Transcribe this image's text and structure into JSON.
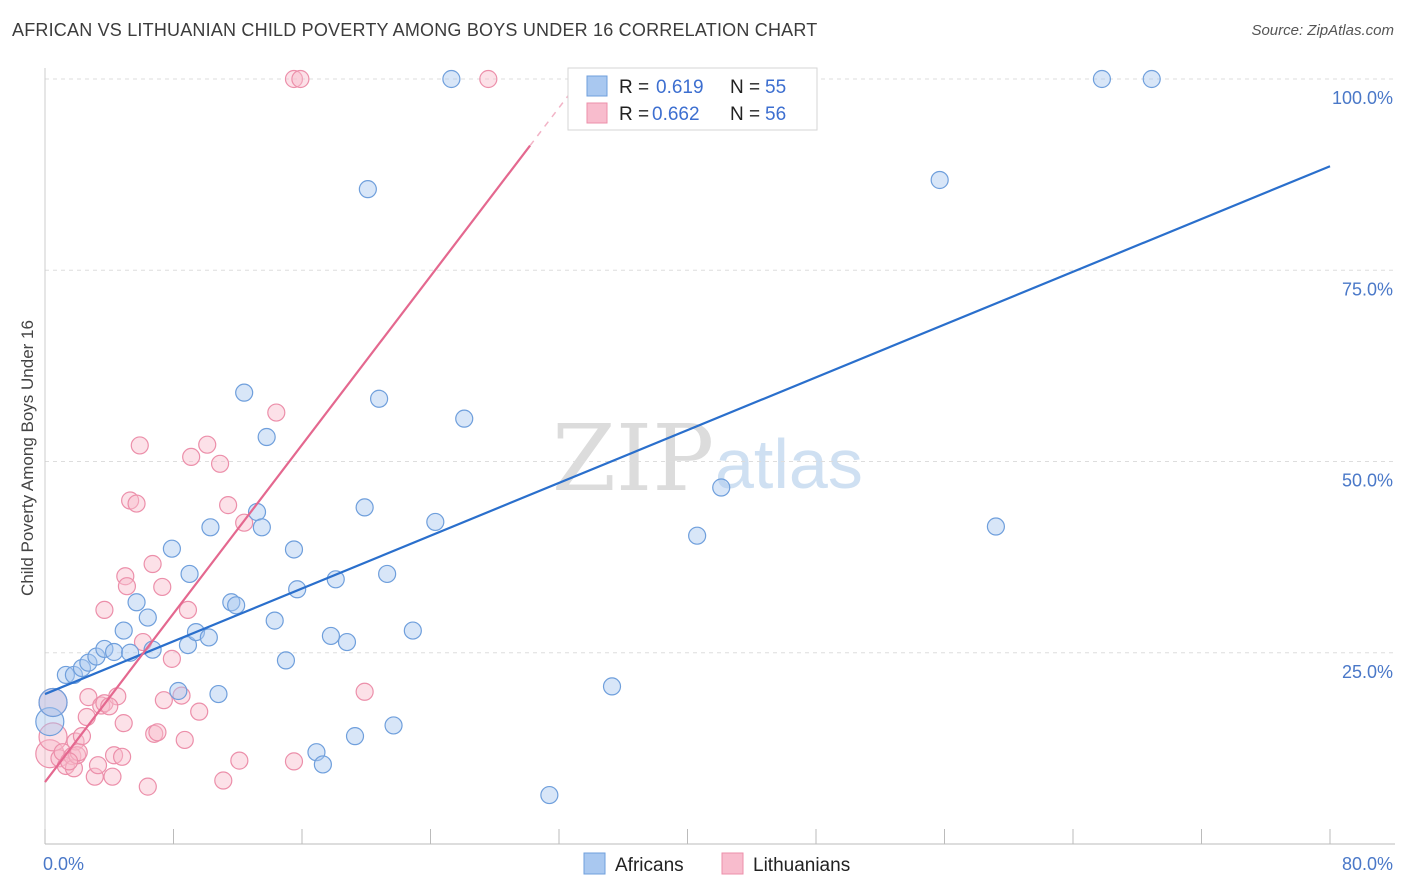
{
  "header": {
    "title": "AFRICAN VS LITHUANIAN CHILD POVERTY AMONG BOYS UNDER 16 CORRELATION CHART",
    "source": "Source: ZipAtlas.com"
  },
  "watermark": {
    "zip": "ZIP",
    "atlas": "atlas"
  },
  "legend": {
    "r_label": "R =",
    "n_label": "N =",
    "africans": {
      "r": "0.619",
      "n": "55"
    },
    "lithuanians": {
      "r": "0.662",
      "n": "56"
    }
  },
  "bottom_legend": {
    "africans": "Africans",
    "lithuanians": "Lithuanians"
  },
  "colors": {
    "africans_fill": "#a9c8f0",
    "africans_stroke": "#6f9fdc",
    "africans_line": "#2a6fcc",
    "lithuanians_fill": "#f8bccd",
    "lithuanians_stroke": "#ec8faa",
    "lithuanians_line": "#e4688f",
    "tick_text": "#4a78c8",
    "grid": "#dddddd"
  },
  "chart_data": {
    "type": "scatter",
    "title": "AFRICAN VS LITHUANIAN CHILD POVERTY AMONG BOYS UNDER 16 CORRELATION CHART",
    "xlabel": "",
    "ylabel": "Child Poverty Among Boys Under 16",
    "xlim": [
      0,
      80
    ],
    "ylim": [
      0,
      100
    ],
    "x_tick_labels": [
      "0.0%",
      "80.0%"
    ],
    "y_ticks": [
      25,
      50,
      75,
      100
    ],
    "y_tick_labels": [
      "25.0%",
      "50.0%",
      "75.0%",
      "100.0%"
    ],
    "grid": true,
    "legend_position": "top-center",
    "series": [
      {
        "name": "Africans",
        "r": 0.619,
        "n": 55,
        "trend": {
          "x": [
            0,
            80
          ],
          "y": [
            19.6,
            88.6
          ]
        },
        "points": [
          [
            0.3,
            16.0
          ],
          [
            0.5,
            18.5
          ],
          [
            1.3,
            22.1
          ],
          [
            1.8,
            22.1
          ],
          [
            2.3,
            23.0
          ],
          [
            2.7,
            23.7
          ],
          [
            3.2,
            24.5
          ],
          [
            3.7,
            25.5
          ],
          [
            4.3,
            25.1
          ],
          [
            5.3,
            25.0
          ],
          [
            4.9,
            27.9
          ],
          [
            5.7,
            31.6
          ],
          [
            6.4,
            29.6
          ],
          [
            6.7,
            25.4
          ],
          [
            7.9,
            38.6
          ],
          [
            9.0,
            35.3
          ],
          [
            8.3,
            20.0
          ],
          [
            8.9,
            26.0
          ],
          [
            9.4,
            27.7
          ],
          [
            10.2,
            27.0
          ],
          [
            10.3,
            41.4
          ],
          [
            10.8,
            19.6
          ],
          [
            11.6,
            31.6
          ],
          [
            11.9,
            31.2
          ],
          [
            12.4,
            59.0
          ],
          [
            13.2,
            43.4
          ],
          [
            13.5,
            41.4
          ],
          [
            13.8,
            53.2
          ],
          [
            14.3,
            29.2
          ],
          [
            15.0,
            24.0
          ],
          [
            15.5,
            38.5
          ],
          [
            15.7,
            33.3
          ],
          [
            16.9,
            12.0
          ],
          [
            17.3,
            10.4
          ],
          [
            17.8,
            27.2
          ],
          [
            18.1,
            34.6
          ],
          [
            18.8,
            26.4
          ],
          [
            19.3,
            14.1
          ],
          [
            19.9,
            44.0
          ],
          [
            20.1,
            85.6
          ],
          [
            20.8,
            58.2
          ],
          [
            21.3,
            35.3
          ],
          [
            21.7,
            15.5
          ],
          [
            22.9,
            27.9
          ],
          [
            24.3,
            42.1
          ],
          [
            25.3,
            100.0
          ],
          [
            26.1,
            55.6
          ],
          [
            31.4,
            6.4
          ],
          [
            35.3,
            20.6
          ],
          [
            40.6,
            40.3
          ],
          [
            42.1,
            46.6
          ],
          [
            55.7,
            86.8
          ],
          [
            59.2,
            41.5
          ],
          [
            65.8,
            100.0
          ],
          [
            68.9,
            100.0
          ]
        ]
      },
      {
        "name": "Lithuanians",
        "r": 0.662,
        "n": 56,
        "trend": {
          "x": [
            0,
            30.2
          ],
          "y": [
            8.1,
            91.3
          ]
        },
        "trend_dashed": {
          "x": [
            30.2,
            33.0
          ],
          "y": [
            91.3,
            99.0
          ]
        },
        "points": [
          [
            0.3,
            11.8
          ],
          [
            0.5,
            14.0
          ],
          [
            0.5,
            18.5
          ],
          [
            0.9,
            11.2
          ],
          [
            1.1,
            12.0
          ],
          [
            1.3,
            10.2
          ],
          [
            1.7,
            11.5
          ],
          [
            1.8,
            9.9
          ],
          [
            1.9,
            13.4
          ],
          [
            2.0,
            11.6
          ],
          [
            2.1,
            12.0
          ],
          [
            2.3,
            14.1
          ],
          [
            2.6,
            16.6
          ],
          [
            2.7,
            19.2
          ],
          [
            3.1,
            8.8
          ],
          [
            3.3,
            10.3
          ],
          [
            3.5,
            18.1
          ],
          [
            3.7,
            18.4
          ],
          [
            3.7,
            30.6
          ],
          [
            4.2,
            8.8
          ],
          [
            4.3,
            11.6
          ],
          [
            4.5,
            19.3
          ],
          [
            4.8,
            11.4
          ],
          [
            4.9,
            15.8
          ],
          [
            5.0,
            35.0
          ],
          [
            5.1,
            33.7
          ],
          [
            5.3,
            44.9
          ],
          [
            5.7,
            44.5
          ],
          [
            5.9,
            52.1
          ],
          [
            6.1,
            26.4
          ],
          [
            6.4,
            7.5
          ],
          [
            6.7,
            36.6
          ],
          [
            6.8,
            14.4
          ],
          [
            7.0,
            14.6
          ],
          [
            7.3,
            33.6
          ],
          [
            7.4,
            18.8
          ],
          [
            7.9,
            24.2
          ],
          [
            8.5,
            19.4
          ],
          [
            8.7,
            13.6
          ],
          [
            8.9,
            30.6
          ],
          [
            9.1,
            50.6
          ],
          [
            9.6,
            17.3
          ],
          [
            10.1,
            52.2
          ],
          [
            10.9,
            49.7
          ],
          [
            11.1,
            8.3
          ],
          [
            11.4,
            44.3
          ],
          [
            12.1,
            10.9
          ],
          [
            12.4,
            42.0
          ],
          [
            14.4,
            56.4
          ],
          [
            15.5,
            10.8
          ],
          [
            15.5,
            100.0
          ],
          [
            15.9,
            100.0
          ],
          [
            19.9,
            19.9
          ],
          [
            27.6,
            100.0
          ],
          [
            1.5,
            10.8
          ],
          [
            4.0,
            18.0
          ]
        ]
      }
    ]
  }
}
